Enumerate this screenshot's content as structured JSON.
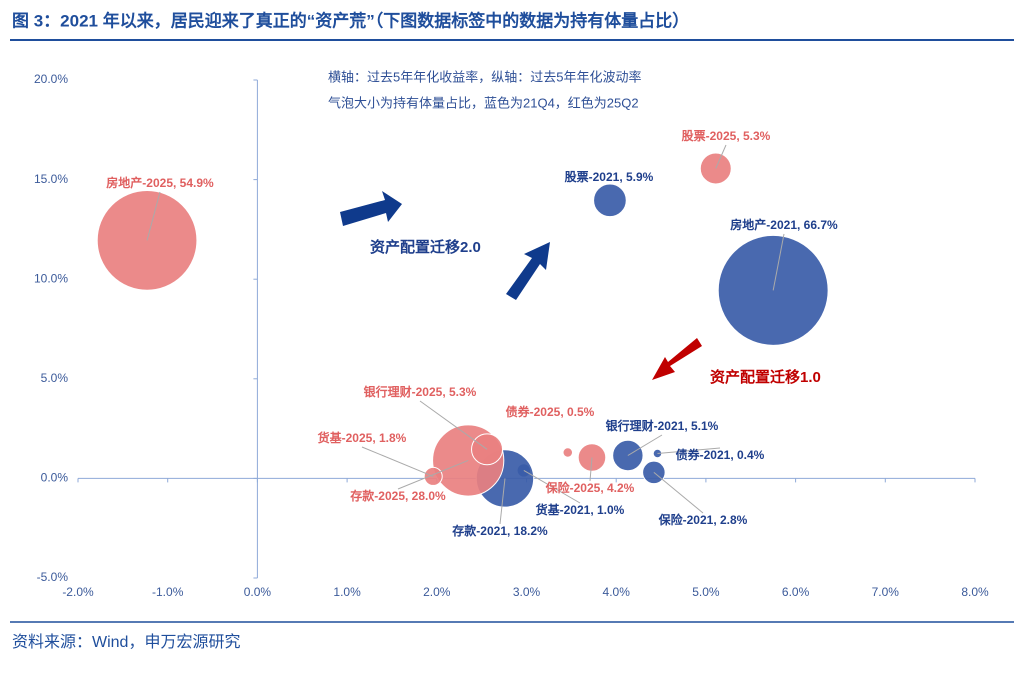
{
  "chart_data": {
    "type": "bubble",
    "title": "图 3：2021 年以来，居民迎来了真正的“资产荒”（下图数据标签中的数据为持有体量占比）",
    "notes": [
      "横轴：过去5年年化收益率，纵轴：过去5年年化波动率",
      "气泡大小为持有体量占比，蓝色为21Q4，红色为25Q2"
    ],
    "annotations": [
      "资产配置迁移2.0",
      "资产配置迁移1.0"
    ],
    "source": "资料来源：Wind，申万宏源研究",
    "xlim": [
      -2,
      8
    ],
    "xticks": [
      {
        "value": -2,
        "label": "-2.0%"
      },
      {
        "value": -1,
        "label": "-1.0%"
      },
      {
        "value": 0,
        "label": "0.0%"
      },
      {
        "value": 1,
        "label": "1.0%"
      },
      {
        "value": 2,
        "label": "2.0%"
      },
      {
        "value": 3,
        "label": "3.0%"
      },
      {
        "value": 4,
        "label": "4.0%"
      },
      {
        "value": 5,
        "label": "5.0%"
      },
      {
        "value": 6,
        "label": "6.0%"
      },
      {
        "value": 7,
        "label": "7.0%"
      },
      {
        "value": 8,
        "label": "8.0%"
      }
    ],
    "ylim": [
      -5,
      20
    ],
    "yticks": [
      {
        "value": -5,
        "label": "-5.0%"
      },
      {
        "value": 0,
        "label": "0.0%"
      },
      {
        "value": 5,
        "label": "5.0%"
      },
      {
        "value": 10,
        "label": "10.0%"
      },
      {
        "value": 15,
        "label": "15.0%"
      },
      {
        "value": 20,
        "label": "20.0%"
      }
    ],
    "series": [
      {
        "color": "#3a5ca8",
        "labels": [
          "股票-2021, 5.9%",
          "房地产-2021, 66.7%",
          "银行理财-2021, 5.1%",
          "债券-2021, 0.4%",
          "保险-2021, 2.8%",
          "货基-2021, 1.0%",
          "存款-2021, 18.2%"
        ],
        "x": [
          3.93,
          5.75,
          4.13,
          4.46,
          4.42,
          2.97,
          2.76
        ],
        "values": [
          13.96,
          9.44,
          1.15,
          1.25,
          0.3,
          0.4,
          0.0
        ],
        "sizes": [
          5.9,
          66.7,
          5.1,
          0.4,
          2.8,
          1.0,
          18.2
        ]
      },
      {
        "color": "#e98080",
        "labels": [
          "房地产-2025, 54.9%",
          "股票-2025, 5.3%",
          "存款-2025, 28.0%",
          "银行理财-2025, 5.3%",
          "货基-2025, 1.8%",
          "债券-2025, 0.5%",
          "保险-2025, 4.2%"
        ],
        "x": [
          -1.23,
          5.11,
          2.35,
          2.56,
          1.96,
          3.46,
          3.73
        ],
        "values": [
          11.95,
          15.56,
          0.9,
          1.46,
          0.1,
          1.3,
          1.05
        ],
        "sizes": [
          54.9,
          5.3,
          28.0,
          5.3,
          1.8,
          0.5,
          4.2
        ]
      }
    ]
  }
}
